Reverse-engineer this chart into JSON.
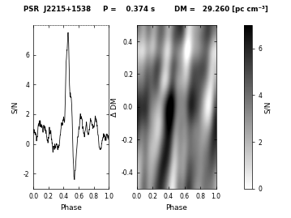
{
  "psr_name": "PSR  J2215+1538",
  "period_label": "P =",
  "period_value": "0.374 s",
  "dm_label": "DM =",
  "dm_value": "29.260 [pc cm⁻³]",
  "left_ylabel": "S/N",
  "left_xlabel": "Phase",
  "right_ylabel": "Δ DM",
  "right_xlabel": "Phase",
  "colorbar_label": "S/N",
  "ylim_left": [
    -3.0,
    8.0
  ],
  "xlim": [
    0.0,
    1.0
  ],
  "dm_ylim": [
    -0.5,
    0.5
  ],
  "colorbar_vmin": 0,
  "colorbar_vmax": 7,
  "seed": 12345,
  "profile_peak_phase": 0.46,
  "profile_peak_value": 7.5,
  "profile_dip_phase": 0.52,
  "profile_dip_value": -2.5
}
